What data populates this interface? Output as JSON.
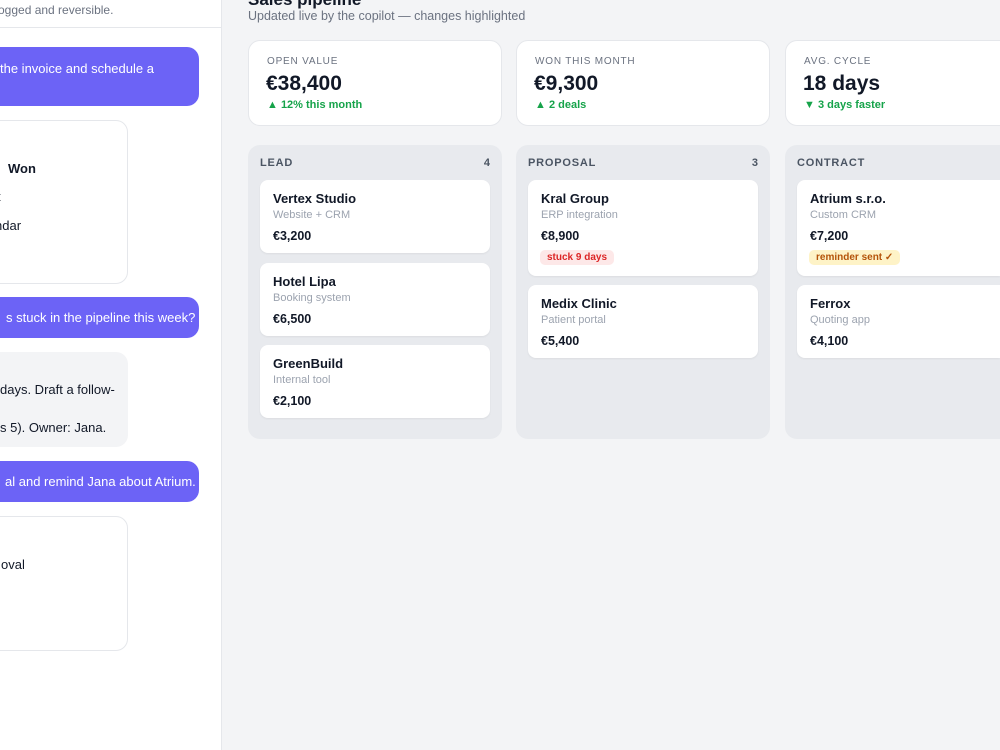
{
  "chat": {
    "subtitle": "ogged and reversible.",
    "messages": [
      {
        "role": "user",
        "text": "the invoice and schedule a"
      },
      {
        "role": "bot",
        "lines": [
          "Won",
          "t",
          "ndar"
        ]
      },
      {
        "role": "user",
        "text": "s stuck in the pipeline this week?"
      },
      {
        "role": "bot",
        "lines": [
          "days. Draft a follow-",
          "s 5). Owner: Jana."
        ]
      },
      {
        "role": "user",
        "text": "al and remind Jana about Atrium."
      },
      {
        "role": "bot",
        "lines": [
          "oval"
        ]
      }
    ]
  },
  "header": {
    "title": "Sales pipeline",
    "subtitle": "Updated live by the copilot — changes highlighted"
  },
  "stats": [
    {
      "label": "OPEN VALUE",
      "value": "€38,400",
      "delta": "▲ 12% this month"
    },
    {
      "label": "WON THIS MONTH",
      "value": "€9,300",
      "delta": "▲ 2 deals"
    },
    {
      "label": "AVG. CYCLE",
      "value": "18 days",
      "delta": "▼ 3 days faster"
    }
  ],
  "columns": [
    {
      "name": "LEAD",
      "count": "4",
      "deals": [
        {
          "name": "Vertex Studio",
          "desc": "Website + CRM",
          "amount": "€3,200"
        },
        {
          "name": "Hotel Lipa",
          "desc": "Booking system",
          "amount": "€6,500"
        },
        {
          "name": "GreenBuild",
          "desc": "Internal tool",
          "amount": "€2,100"
        }
      ]
    },
    {
      "name": "PROPOSAL",
      "count": "3",
      "deals": [
        {
          "name": "Kral Group",
          "desc": "ERP integration",
          "amount": "€8,900",
          "badge": "stuck 9 days"
        },
        {
          "name": "Medix Clinic",
          "desc": "Patient portal",
          "amount": "€5,400"
        }
      ]
    },
    {
      "name": "CONTRACT",
      "count": "",
      "deals": [
        {
          "name": "Atrium s.r.o.",
          "desc": "Custom CRM",
          "amount": "€7,200",
          "badge": "reminder sent ✓"
        },
        {
          "name": "Ferrox",
          "desc": "Quoting app",
          "amount": "€4,100"
        }
      ]
    }
  ],
  "colors": {
    "accent": "#6c63f6",
    "positive": "#16a34a",
    "danger": "#dc2626",
    "warning": "#b45309"
  }
}
